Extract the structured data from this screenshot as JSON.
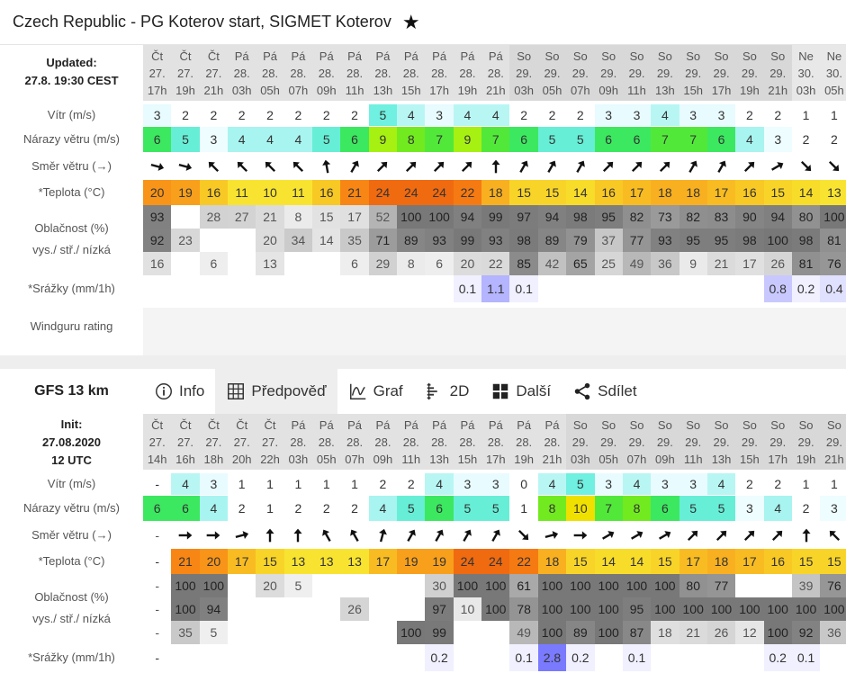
{
  "title": "Czech Republic - PG Koterov start, SIGMET Koterov",
  "star": "★",
  "top": {
    "updated_label": "Updated:",
    "updated_value": "27.8. 19:30 CEST",
    "days": [
      "Čt",
      "Čt",
      "Čt",
      "Pá",
      "Pá",
      "Pá",
      "Pá",
      "Pá",
      "Pá",
      "Pá",
      "Pá",
      "Pá",
      "Pá",
      "So",
      "So",
      "So",
      "So",
      "So",
      "So",
      "So",
      "So",
      "So",
      "So",
      "Ne",
      "Ne"
    ],
    "dates": [
      "27.",
      "27.",
      "27.",
      "28.",
      "28.",
      "28.",
      "28.",
      "28.",
      "28.",
      "28.",
      "28.",
      "28.",
      "28.",
      "29.",
      "29.",
      "29.",
      "29.",
      "29.",
      "29.",
      "29.",
      "29.",
      "29.",
      "29.",
      "30.",
      "30."
    ],
    "hours": [
      "17h",
      "19h",
      "21h",
      "03h",
      "05h",
      "07h",
      "09h",
      "11h",
      "13h",
      "15h",
      "17h",
      "19h",
      "21h",
      "03h",
      "05h",
      "07h",
      "09h",
      "11h",
      "13h",
      "15h",
      "17h",
      "19h",
      "21h",
      "03h",
      "05h"
    ],
    "labels": {
      "wind": "Vítr (m/s)",
      "gust": "Nárazy větru (m/s)",
      "dir": "Směr větru (→)",
      "temp": "*Teplota (°C)",
      "cloud1": "Oblačnost (%)",
      "cloud2": "vys./ stř./ nízká",
      "rain": "*Srážky (mm/1h)",
      "rating": "Windguru rating"
    },
    "wind": [
      "3",
      "2",
      "2",
      "2",
      "2",
      "2",
      "2",
      "2",
      "5",
      "4",
      "3",
      "4",
      "4",
      "2",
      "2",
      "2",
      "3",
      "3",
      "4",
      "3",
      "3",
      "2",
      "2",
      "1",
      "1"
    ],
    "gust": [
      "6",
      "5",
      "3",
      "4",
      "4",
      "4",
      "5",
      "6",
      "9",
      "8",
      "7",
      "9",
      "7",
      "6",
      "5",
      "5",
      "6",
      "6",
      "7",
      "7",
      "6",
      "4",
      "3",
      "2",
      "2"
    ],
    "dir": [
      105,
      105,
      315,
      315,
      315,
      315,
      350,
      30,
      45,
      45,
      45,
      45,
      0,
      30,
      30,
      30,
      45,
      45,
      45,
      30,
      30,
      45,
      60,
      135,
      135
    ],
    "temp": [
      "20",
      "19",
      "16",
      "11",
      "10",
      "11",
      "16",
      "21",
      "24",
      "24",
      "24",
      "22",
      "18",
      "15",
      "15",
      "14",
      "16",
      "17",
      "18",
      "18",
      "17",
      "16",
      "15",
      "14",
      "13"
    ],
    "high": [
      "93",
      "",
      "28",
      "27",
      "21",
      "8",
      "15",
      "17",
      "52",
      "100",
      "100",
      "94",
      "99",
      "97",
      "94",
      "98",
      "95",
      "82",
      "73",
      "82",
      "83",
      "90",
      "94",
      "80",
      "100"
    ],
    "mid": [
      "92",
      "23",
      "",
      "",
      "20",
      "34",
      "14",
      "35",
      "71",
      "89",
      "93",
      "99",
      "93",
      "98",
      "89",
      "79",
      "37",
      "77",
      "93",
      "95",
      "95",
      "98",
      "100",
      "98",
      "81"
    ],
    "low": [
      "16",
      "",
      "6",
      "",
      "13",
      "",
      "",
      "6",
      "29",
      "8",
      "6",
      "20",
      "22",
      "85",
      "42",
      "65",
      "25",
      "49",
      "36",
      "9",
      "21",
      "17",
      "26",
      "81",
      "76"
    ],
    "rain": [
      "",
      "",
      "",
      "",
      "",
      "",
      "",
      "",
      "",
      "",
      "",
      "0.1",
      "1.1",
      "0.1",
      "",
      "",
      "",
      "",
      "",
      "",
      "",
      "",
      "0.8",
      "0.2",
      "0.4"
    ]
  },
  "tabs": {
    "model": "GFS 13 km",
    "info": "Info",
    "forecast": "Předpověď",
    "graph": "Graf",
    "two_d": "2D",
    "more": "Další",
    "share": "Sdílet"
  },
  "gfs": {
    "init_label": "Init:",
    "init_date": "27.08.2020",
    "init_time": "12 UTC",
    "days": [
      "Čt",
      "Čt",
      "Čt",
      "Čt",
      "Čt",
      "Pá",
      "Pá",
      "Pá",
      "Pá",
      "Pá",
      "Pá",
      "Pá",
      "Pá",
      "Pá",
      "Pá",
      "So",
      "So",
      "So",
      "So",
      "So",
      "So",
      "So",
      "So",
      "So",
      "So"
    ],
    "dates": [
      "27.",
      "27.",
      "27.",
      "27.",
      "27.",
      "28.",
      "28.",
      "28.",
      "28.",
      "28.",
      "28.",
      "28.",
      "28.",
      "28.",
      "28.",
      "29.",
      "29.",
      "29.",
      "29.",
      "29.",
      "29.",
      "29.",
      "29.",
      "29.",
      "29."
    ],
    "hours": [
      "14h",
      "16h",
      "18h",
      "20h",
      "22h",
      "03h",
      "05h",
      "07h",
      "09h",
      "11h",
      "13h",
      "15h",
      "17h",
      "19h",
      "21h",
      "03h",
      "05h",
      "07h",
      "09h",
      "11h",
      "13h",
      "15h",
      "17h",
      "19h",
      "21h"
    ],
    "labels": {
      "wind": "Vítr (m/s)",
      "gust": "Nárazy větru (m/s)",
      "dir": "Směr větru (→)",
      "temp": "*Teplota (°C)",
      "cloud1": "Oblačnost (%)",
      "cloud2": "vys./ stř./ nízká",
      "rain": "*Srážky (mm/1h)"
    },
    "wind": [
      "-",
      "4",
      "3",
      "1",
      "1",
      "1",
      "1",
      "1",
      "2",
      "2",
      "4",
      "3",
      "3",
      "0",
      "4",
      "5",
      "3",
      "4",
      "3",
      "3",
      "4",
      "2",
      "2",
      "1",
      "1"
    ],
    "gust": [
      "6",
      "6",
      "4",
      "2",
      "1",
      "2",
      "2",
      "2",
      "4",
      "5",
      "6",
      "5",
      "5",
      "1",
      "8",
      "10",
      "7",
      "8",
      "6",
      "5",
      "5",
      "3",
      "4",
      "2",
      "3"
    ],
    "dir": [
      -1,
      90,
      90,
      75,
      0,
      0,
      330,
      330,
      15,
      30,
      30,
      30,
      30,
      135,
      75,
      90,
      60,
      60,
      60,
      45,
      45,
      45,
      45,
      0,
      315
    ],
    "temp": [
      "-",
      "21",
      "20",
      "17",
      "15",
      "13",
      "13",
      "13",
      "17",
      "19",
      "19",
      "24",
      "24",
      "22",
      "18",
      "15",
      "14",
      "14",
      "15",
      "17",
      "18",
      "17",
      "16",
      "15",
      "15"
    ],
    "high": [
      "-",
      "100",
      "100",
      "",
      "20",
      "5",
      "",
      "",
      "",
      "",
      "30",
      "100",
      "100",
      "61",
      "100",
      "100",
      "100",
      "100",
      "100",
      "80",
      "77",
      "",
      "",
      "39",
      "76"
    ],
    "mid": [
      "-",
      "100",
      "94",
      "",
      "",
      "",
      "",
      "26",
      "",
      "",
      "97",
      "10",
      "100",
      "78",
      "100",
      "100",
      "100",
      "95",
      "100",
      "100",
      "100",
      "100",
      "100",
      "100",
      "100"
    ],
    "low": [
      "-",
      "35",
      "5",
      "",
      "",
      "",
      "",
      "",
      "",
      "100",
      "99",
      "",
      "",
      "49",
      "100",
      "89",
      "100",
      "87",
      "18",
      "21",
      "26",
      "12",
      "100",
      "92",
      "36"
    ],
    "rain": [
      "-",
      "",
      "",
      "",
      "",
      "",
      "",
      "",
      "",
      "",
      "0.2",
      "",
      "",
      "0.1",
      "2.8",
      "0.2",
      "",
      "0.1",
      "",
      "",
      "",
      "",
      "0.2",
      "0.1",
      ""
    ]
  },
  "colors": {
    "accent": "#333333",
    "selected_tab": "#eeeeee"
  }
}
